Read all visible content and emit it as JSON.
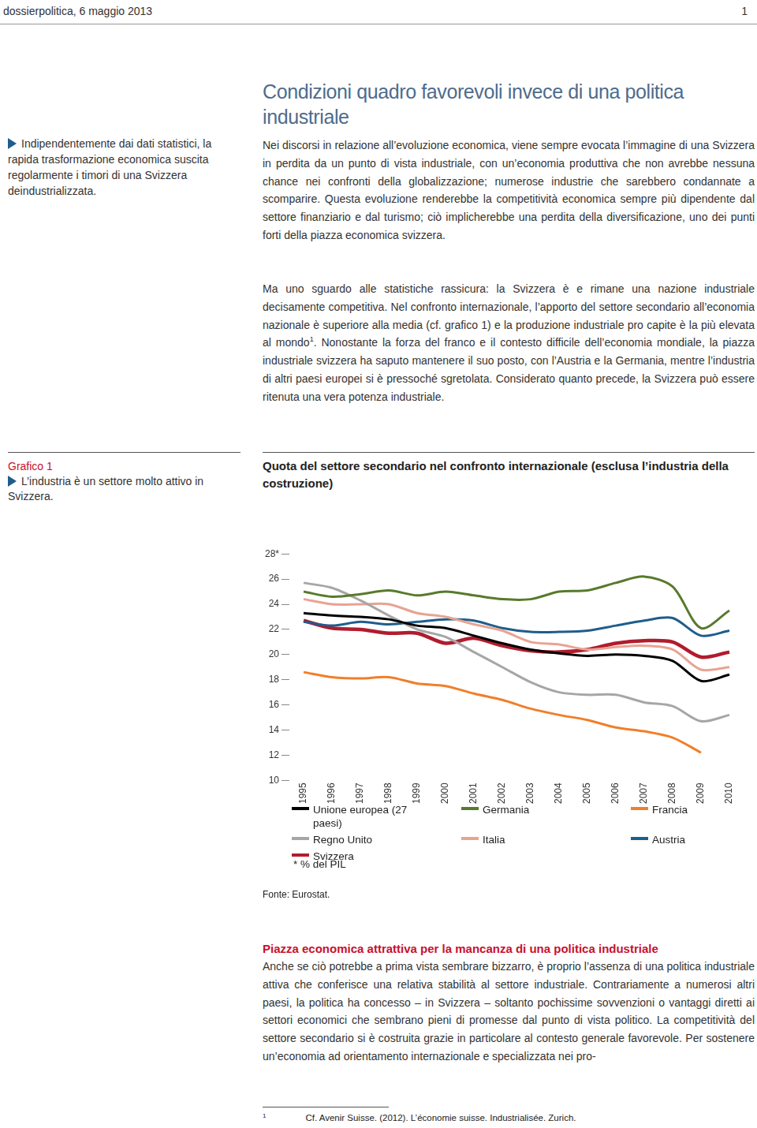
{
  "header": {
    "publication": "dossierpolitica, 6 maggio 2013",
    "page": "1"
  },
  "sidebar": "Indipendentemente dai dati statistici, la rapida trasformazione economica suscita regolarmente i timori di una Svizzera deindustrializzata.",
  "title": "Condizioni quadro favorevoli invece di una politica industriale",
  "paragraphs": [
    [
      {
        "text": "Nei discorsi in relazione all’evoluzione economica, viene sempre evocata l’immagine di una Svizzera in perdita da un punto di vista industriale, con un’economia produttiva che non avrebbe nessuna chance nei confronti della globalizzazione; numerose industrie che sarebbero condannate a scomparire. Questa evoluzione renderebbe la competitività economica sempre più dipendente dal settore finanziario e dal turismo; ciò implicherebbe una perdita della diversificazione, uno dei punti forti della piazza economica svizzera."
      }
    ],
    [
      {
        "text": "Ma uno sguardo alle statistiche rassicura: la Svizzera è e rimane una nazione industriale decisamente competitiva. Nel confronto internazionale, l’apporto del settore secondario all’economia nazionale è superiore alla media (cf. grafico 1) e la produzione industriale pro capite è la più elevata al mondo"
      },
      {
        "sup": "1"
      },
      {
        "text": ". Nonostante la forza del franco e il contesto difficile dell’economia mondiale, la piazza industriale svizzera ha saputo mantenere il suo posto, con l’Austria e la Germania, mentre l’industria di altri paesi europei si è pressoché sgretolata. Considerato quanto precede, la Svizzera può essere ritenuta una vera potenza industriale."
      }
    ]
  ],
  "figure": {
    "label": "Grafico 1",
    "caption": "L’industria è un settore molto attivo in Svizzera.",
    "note": "* % del PIL",
    "source": "Fonte: Eurostat."
  },
  "chart_data": {
    "type": "line",
    "title": "Quota del settore secondario nel confronto internazionale (esclusa l’industria della costruzione)",
    "categories": [
      "1995",
      "1996",
      "1997",
      "1998",
      "1999",
      "2000",
      "2001",
      "2002",
      "2003",
      "2004",
      "2005",
      "2006",
      "2007",
      "2008",
      "2009",
      "2010"
    ],
    "series": [
      {
        "name": "Unione europea (27 paesi)",
        "color": "#000000",
        "values": [
          23.3,
          23.1,
          23.0,
          22.8,
          22.3,
          22.1,
          21.5,
          20.9,
          20.4,
          20.1,
          19.9,
          20.0,
          19.9,
          19.5,
          17.9,
          18.4
        ]
      },
      {
        "name": "Germania",
        "color": "#587a2b",
        "values": [
          25.0,
          24.6,
          24.8,
          25.1,
          24.7,
          25.0,
          24.7,
          24.4,
          24.4,
          25.0,
          25.1,
          25.7,
          26.2,
          25.4,
          22.1,
          23.5
        ]
      },
      {
        "name": "Francia",
        "color": "#f07f2a",
        "values": [
          18.6,
          18.2,
          18.1,
          18.2,
          17.7,
          17.5,
          16.9,
          16.4,
          15.7,
          15.2,
          14.8,
          14.2,
          13.9,
          13.4,
          12.2,
          null
        ]
      },
      {
        "name": "Regno Unito",
        "color": "#a6a6a6",
        "values": [
          25.7,
          25.3,
          24.3,
          23.1,
          22.0,
          21.4,
          20.2,
          19.0,
          17.8,
          17.0,
          16.8,
          16.8,
          16.2,
          15.9,
          14.7,
          15.2
        ]
      },
      {
        "name": "Italia",
        "color": "#e8a393",
        "values": [
          24.4,
          24.0,
          24.0,
          24.0,
          23.3,
          23.0,
          22.4,
          21.9,
          21.0,
          20.8,
          20.4,
          20.6,
          20.7,
          20.4,
          18.8,
          19.0
        ]
      },
      {
        "name": "Austria",
        "color": "#1f5d8c",
        "values": [
          22.6,
          22.3,
          22.6,
          22.4,
          22.6,
          22.8,
          22.7,
          22.1,
          21.8,
          21.8,
          21.9,
          22.3,
          22.7,
          22.9,
          21.5,
          21.9
        ]
      },
      {
        "name": "Svizzera",
        "color": "#b01c2e",
        "values": [
          22.7,
          22.1,
          22.0,
          21.7,
          21.7,
          20.9,
          21.3,
          20.7,
          20.3,
          20.2,
          20.4,
          20.9,
          21.1,
          21.0,
          19.8,
          20.2
        ]
      }
    ],
    "ylim": [
      10,
      28
    ],
    "yticks": [
      10,
      12,
      14,
      16,
      18,
      20,
      22,
      24,
      26,
      {
        "value": 28,
        "label": "28*"
      }
    ],
    "grid": false,
    "legend": "bottom"
  },
  "section2": {
    "heading": "Piazza economica attrattiva per la mancanza di una politica industriale",
    "text": "Anche se ciò potrebbe a prima vista sembrare bizzarro, è proprio l’assenza di una politica industriale attiva che conferisce una relativa stabilità al settore industriale. Contrariamente a numerosi altri paesi, la politica ha concesso – in Svizzera – soltanto pochissime sovvenzioni o vantaggi diretti ai settori economici che sembrano pieni di promesse dal punto di vista politico. La competitività del settore secondario si è costruita grazie in particolare al contesto generale favorevole. Per sostenere un’economia ad orientamento internazionale e specializzata nei pro-"
  },
  "footnotes": [
    {
      "number": "1",
      "text": "Cf. Avenir Suisse. (2012). L’économie suisse. Industrialisée. Zurich."
    }
  ]
}
